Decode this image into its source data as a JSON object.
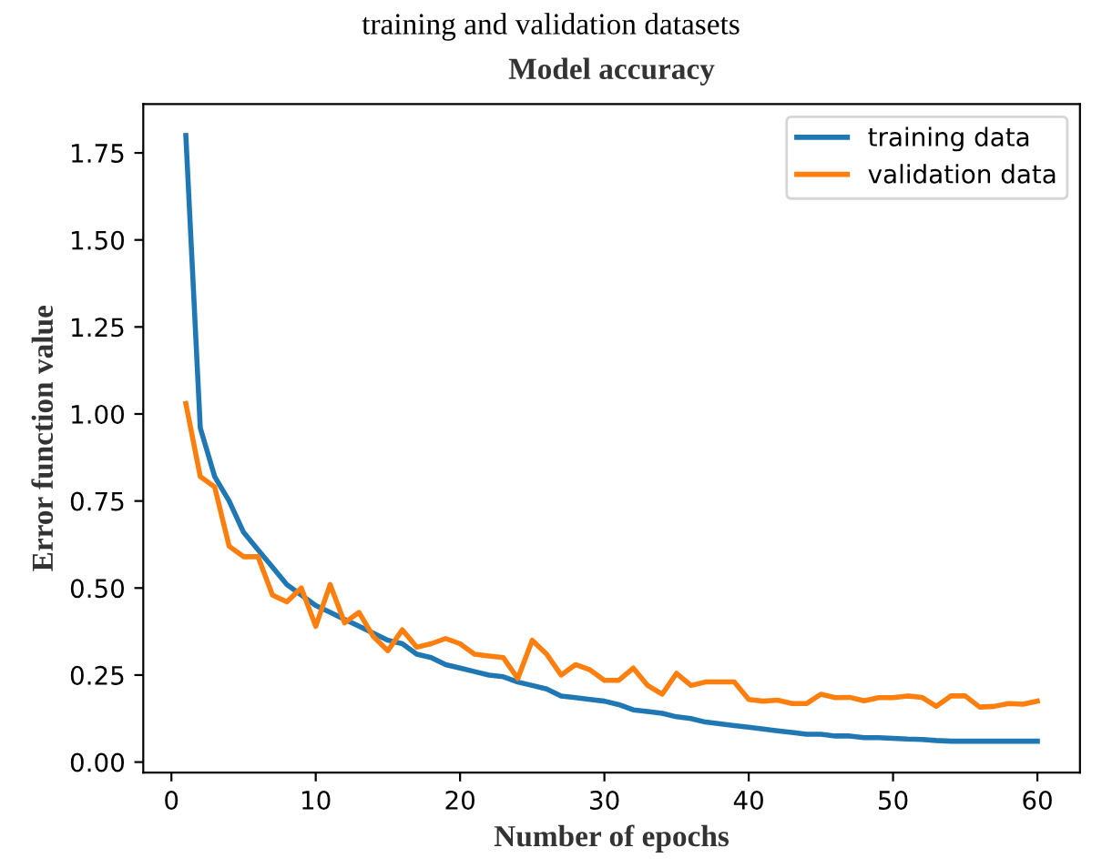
{
  "chart_data": {
    "type": "line",
    "title": "Model accuracy",
    "xlabel": "Number of epochs",
    "ylabel": "Error function value",
    "annotations": [
      "training and validation datasets"
    ],
    "x": [
      1,
      2,
      3,
      4,
      5,
      6,
      7,
      8,
      9,
      10,
      11,
      12,
      13,
      14,
      15,
      16,
      17,
      18,
      19,
      20,
      21,
      22,
      23,
      24,
      25,
      26,
      27,
      28,
      29,
      30,
      31,
      32,
      33,
      34,
      35,
      36,
      37,
      38,
      39,
      40,
      41,
      42,
      43,
      44,
      45,
      46,
      47,
      48,
      49,
      50,
      51,
      52,
      53,
      54,
      55,
      56,
      57,
      58,
      59,
      60
    ],
    "series": [
      {
        "name": "training data",
        "color": "#1f77b4",
        "values": [
          1.8,
          0.96,
          0.82,
          0.75,
          0.66,
          0.61,
          0.56,
          0.51,
          0.48,
          0.45,
          0.43,
          0.41,
          0.39,
          0.37,
          0.35,
          0.34,
          0.31,
          0.3,
          0.28,
          0.27,
          0.26,
          0.25,
          0.245,
          0.23,
          0.22,
          0.21,
          0.19,
          0.185,
          0.18,
          0.175,
          0.165,
          0.15,
          0.145,
          0.14,
          0.13,
          0.125,
          0.115,
          0.11,
          0.105,
          0.1,
          0.095,
          0.09,
          0.085,
          0.08,
          0.08,
          0.075,
          0.075,
          0.07,
          0.07,
          0.068,
          0.066,
          0.065,
          0.062,
          0.06,
          0.06,
          0.06,
          0.06,
          0.06,
          0.06,
          0.06
        ]
      },
      {
        "name": "validation data",
        "color": "#ff7f0e",
        "values": [
          1.03,
          0.82,
          0.79,
          0.62,
          0.59,
          0.59,
          0.48,
          0.46,
          0.5,
          0.39,
          0.51,
          0.4,
          0.43,
          0.36,
          0.32,
          0.38,
          0.33,
          0.34,
          0.355,
          0.34,
          0.31,
          0.305,
          0.3,
          0.24,
          0.35,
          0.31,
          0.25,
          0.28,
          0.265,
          0.235,
          0.235,
          0.27,
          0.22,
          0.195,
          0.255,
          0.22,
          0.23,
          0.23,
          0.23,
          0.18,
          0.175,
          0.178,
          0.168,
          0.168,
          0.195,
          0.185,
          0.186,
          0.176,
          0.185,
          0.185,
          0.19,
          0.186,
          0.16,
          0.19,
          0.19,
          0.158,
          0.16,
          0.168,
          0.166,
          0.175
        ]
      }
    ],
    "xlim": [
      -1.95,
      62.95
    ],
    "ylim": [
      -0.03,
      1.89
    ],
    "xticks": [
      0,
      10,
      20,
      30,
      40,
      50,
      60
    ],
    "yticks": [
      {
        "value": 0,
        "label": "0.00"
      },
      {
        "value": 0.25,
        "label": "0.25"
      },
      {
        "value": 0.5,
        "label": "0.50"
      },
      {
        "value": 0.75,
        "label": "0.75"
      },
      {
        "value": 1.0,
        "label": "1.00"
      },
      {
        "value": 1.25,
        "label": "1.25"
      },
      {
        "value": 1.5,
        "label": "1.50"
      },
      {
        "value": 1.75,
        "label": "1.75"
      }
    ],
    "legend": "top right",
    "grid": false
  }
}
